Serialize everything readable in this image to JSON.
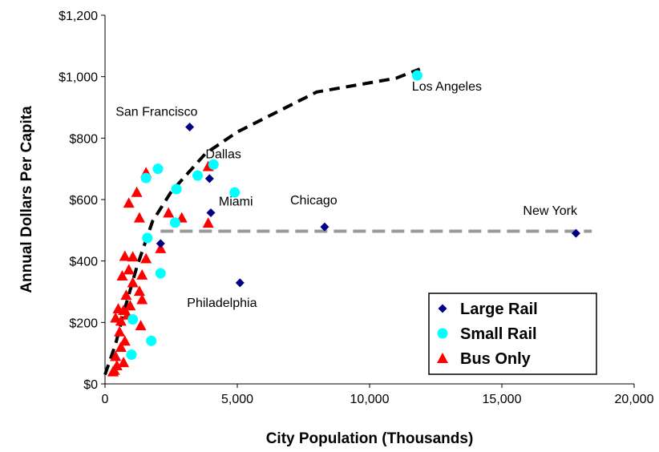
{
  "chart_data": {
    "type": "scatter",
    "title": "",
    "xlabel": "City Population (Thousands)",
    "ylabel": "Annual Dollars Per Capita",
    "xlim": [
      0,
      20000
    ],
    "ylim": [
      0,
      1200
    ],
    "x_ticks": [
      0,
      5000,
      10000,
      15000,
      20000
    ],
    "x_tick_labels": [
      "0",
      "5,000",
      "10,000",
      "15,000",
      "20,000"
    ],
    "y_ticks": [
      0,
      200,
      400,
      600,
      800,
      1000,
      1200
    ],
    "y_tick_labels": [
      "$0",
      "$200",
      "$400",
      "$600",
      "$800",
      "$1,000",
      "$1,200"
    ],
    "grid": false,
    "legend": "bottom-right",
    "series": [
      {
        "name": "Large Rail",
        "marker": "diamond",
        "color": "#000080",
        "points": [
          {
            "x": 3200,
            "y": 836
          },
          {
            "x": 3950,
            "y": 668
          },
          {
            "x": 4000,
            "y": 557
          },
          {
            "x": 5100,
            "y": 329
          },
          {
            "x": 8300,
            "y": 511
          },
          {
            "x": 17800,
            "y": 490
          },
          {
            "x": 2100,
            "y": 457
          }
        ]
      },
      {
        "name": "Small Rail",
        "marker": "circle",
        "color": "#00FFFF",
        "points": [
          {
            "x": 11800,
            "y": 1004
          },
          {
            "x": 4100,
            "y": 714
          },
          {
            "x": 2000,
            "y": 700
          },
          {
            "x": 1550,
            "y": 670
          },
          {
            "x": 3500,
            "y": 678
          },
          {
            "x": 2700,
            "y": 634
          },
          {
            "x": 4900,
            "y": 623
          },
          {
            "x": 2650,
            "y": 525
          },
          {
            "x": 1600,
            "y": 475
          },
          {
            "x": 2100,
            "y": 360
          },
          {
            "x": 1750,
            "y": 140
          },
          {
            "x": 1000,
            "y": 95
          },
          {
            "x": 1050,
            "y": 210
          }
        ]
      },
      {
        "name": "Bus Only",
        "marker": "triangle",
        "color": "#FF0000",
        "points": [
          {
            "x": 1550,
            "y": 688
          },
          {
            "x": 1200,
            "y": 624
          },
          {
            "x": 900,
            "y": 589
          },
          {
            "x": 1300,
            "y": 541
          },
          {
            "x": 2400,
            "y": 557
          },
          {
            "x": 2900,
            "y": 541
          },
          {
            "x": 3900,
            "y": 708
          },
          {
            "x": 3900,
            "y": 524
          },
          {
            "x": 2100,
            "y": 441
          },
          {
            "x": 750,
            "y": 416
          },
          {
            "x": 1050,
            "y": 414
          },
          {
            "x": 1550,
            "y": 408
          },
          {
            "x": 900,
            "y": 372
          },
          {
            "x": 1400,
            "y": 355
          },
          {
            "x": 650,
            "y": 352
          },
          {
            "x": 1050,
            "y": 330
          },
          {
            "x": 1300,
            "y": 302
          },
          {
            "x": 800,
            "y": 289
          },
          {
            "x": 1400,
            "y": 275
          },
          {
            "x": 950,
            "y": 255
          },
          {
            "x": 500,
            "y": 245
          },
          {
            "x": 700,
            "y": 240
          },
          {
            "x": 850,
            "y": 225
          },
          {
            "x": 600,
            "y": 205
          },
          {
            "x": 400,
            "y": 215
          },
          {
            "x": 1350,
            "y": 190
          },
          {
            "x": 550,
            "y": 170
          },
          {
            "x": 750,
            "y": 140
          },
          {
            "x": 600,
            "y": 120
          },
          {
            "x": 400,
            "y": 90
          },
          {
            "x": 700,
            "y": 70
          },
          {
            "x": 450,
            "y": 60
          },
          {
            "x": 350,
            "y": 45
          },
          {
            "x": 300,
            "y": 40
          }
        ]
      }
    ],
    "trend_lines": [
      {
        "style": "dashed",
        "color": "#000000",
        "points": [
          [
            0,
            30
          ],
          [
            400,
            130
          ],
          [
            800,
            260
          ],
          [
            1200,
            380
          ],
          [
            1800,
            530
          ],
          [
            2500,
            625
          ],
          [
            3800,
            750
          ],
          [
            5000,
            820
          ],
          [
            8000,
            950
          ],
          [
            11000,
            995
          ],
          [
            11900,
            1025
          ]
        ]
      },
      {
        "style": "dashed",
        "color": "#999999",
        "points": [
          [
            2100,
            497
          ],
          [
            18400,
            497
          ]
        ]
      }
    ],
    "annotations": [
      {
        "text": "Los Angeles",
        "x": 11600,
        "y": 955
      },
      {
        "text": "San Francisco",
        "x": 400,
        "y": 873
      },
      {
        "text": "Dallas",
        "x": 3800,
        "y": 735
      },
      {
        "text": "Miami",
        "x": 4300,
        "y": 580
      },
      {
        "text": "Chicago",
        "x": 7000,
        "y": 585
      },
      {
        "text": "New York",
        "x": 15800,
        "y": 550
      },
      {
        "text": "Philadelphia",
        "x": 3100,
        "y": 250
      }
    ]
  }
}
